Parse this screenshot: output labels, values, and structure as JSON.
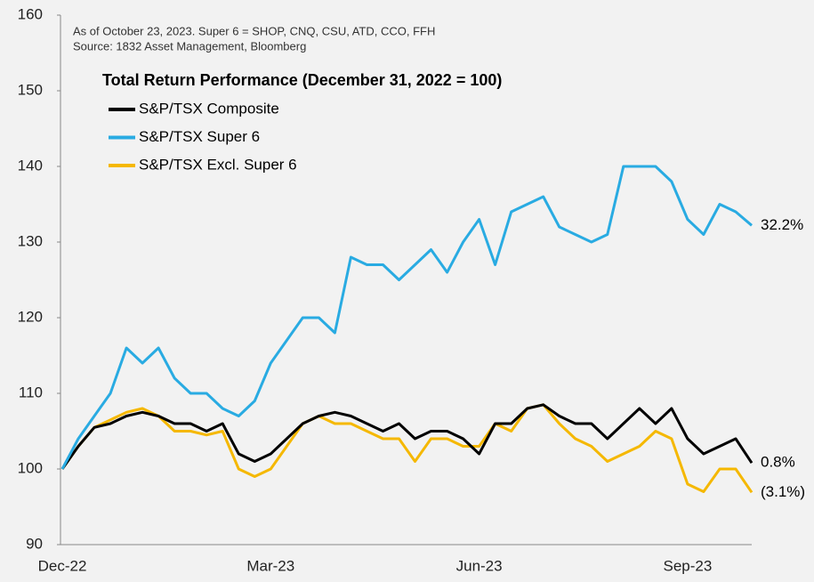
{
  "chart_data": {
    "type": "line",
    "notes": [
      "As of October 23, 2023.  Super 6 = SHOP, CNQ, CSU, ATD, CCO, FFH",
      "Source: 1832 Asset Management, Bloomberg"
    ],
    "title": "Total Return Performance (December 31, 2022 = 100)",
    "categories": [
      "Dec-22",
      null,
      null,
      null,
      null,
      null,
      null,
      null,
      null,
      null,
      null,
      null,
      null,
      "Mar-23",
      null,
      null,
      null,
      null,
      null,
      null,
      null,
      null,
      null,
      null,
      null,
      null,
      "Jun-23",
      null,
      null,
      null,
      null,
      null,
      null,
      null,
      null,
      null,
      null,
      null,
      null,
      "Sep-23",
      null,
      null,
      null,
      null
    ],
    "ylim": [
      90,
      160
    ],
    "yticks": [
      90,
      100,
      110,
      120,
      130,
      140,
      150,
      160
    ],
    "grid": false,
    "legend": "upper-left",
    "series": [
      {
        "name": "S&P/TSX Composite",
        "color": "#000000",
        "end_label": "0.8%",
        "values": [
          100,
          103,
          105.5,
          106,
          107,
          107.5,
          107,
          106,
          106,
          105,
          106,
          102,
          101,
          102,
          104,
          106,
          107,
          107.5,
          107,
          106,
          105,
          106,
          104,
          105,
          105,
          104,
          102,
          106,
          106,
          108,
          108.5,
          107,
          106,
          106,
          104,
          106,
          108,
          106,
          108,
          104,
          102,
          103,
          104,
          100.8
        ]
      },
      {
        "name": "S&P/TSX Super 6",
        "color": "#29abe2",
        "end_label": "32.2%",
        "values": [
          100,
          104,
          107,
          110,
          116,
          114,
          116,
          112,
          110,
          110,
          108,
          107,
          109,
          114,
          117,
          120,
          120,
          118,
          128,
          127,
          127,
          125,
          127,
          129,
          126,
          130,
          133,
          127,
          134,
          135,
          136,
          132,
          131,
          130,
          131,
          140,
          140,
          140,
          138,
          133,
          131,
          135,
          134,
          132.2
        ]
      },
      {
        "name": "S&P/TSX Excl. Super 6",
        "color": "#f5b800",
        "end_label": "(3.1%)",
        "values": [
          100,
          103,
          105.5,
          106.5,
          107.5,
          108,
          107,
          105,
          105,
          104.5,
          105,
          100,
          99,
          100,
          103,
          106,
          107,
          106,
          106,
          105,
          104,
          104,
          101,
          104,
          104,
          103,
          103,
          106,
          105,
          108,
          108.5,
          106,
          104,
          103,
          101,
          102,
          103,
          105,
          104,
          98,
          97,
          100,
          100,
          96.9
        ]
      }
    ]
  }
}
